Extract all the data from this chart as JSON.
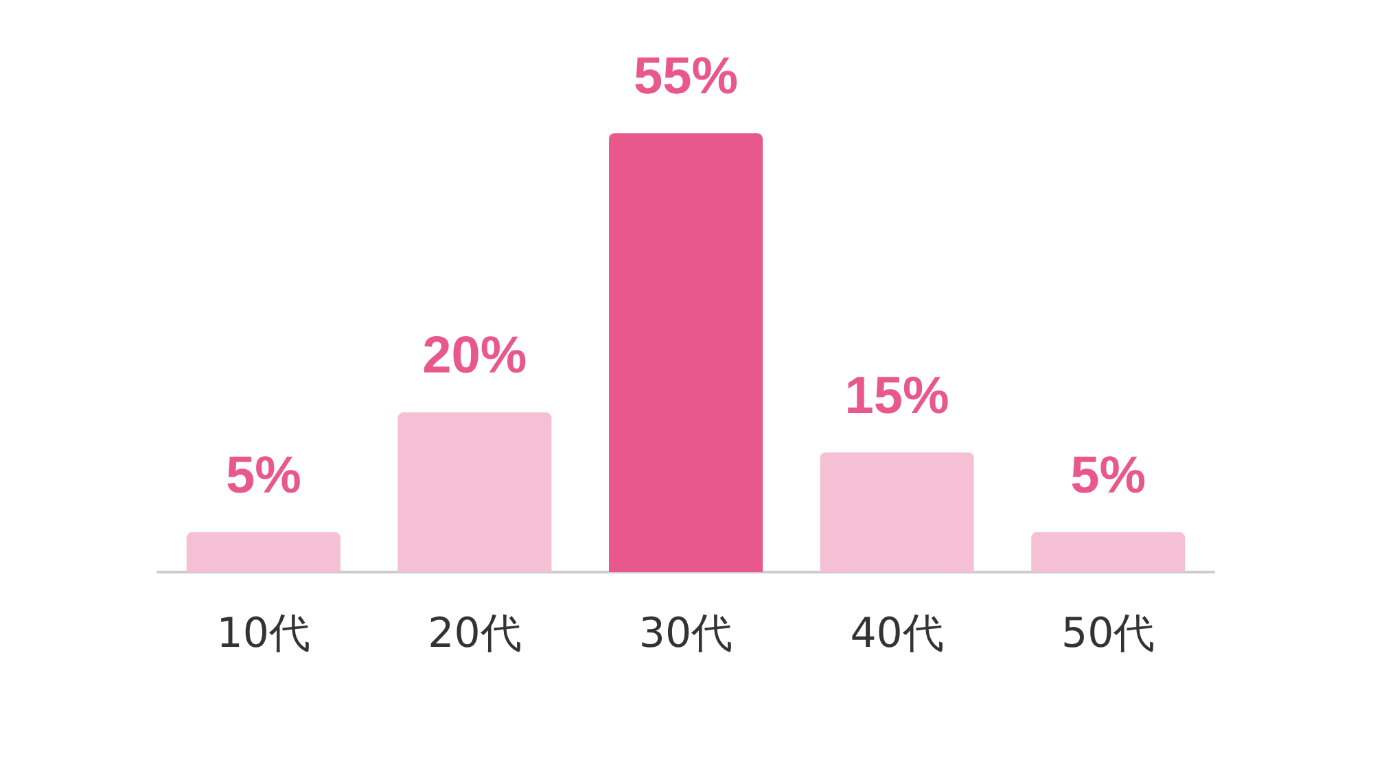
{
  "chart_data": {
    "type": "bar",
    "categories": [
      "10代",
      "20代",
      "30代",
      "40代",
      "50代"
    ],
    "values": [
      5,
      20,
      55,
      15,
      5
    ],
    "colors": [
      "#f5c0d3",
      "#f5c0d3",
      "#e8588a",
      "#f5c0d3",
      "#f5c0d3"
    ],
    "value_labels": [
      "5%",
      "20%",
      "55%",
      "15%",
      "5%"
    ],
    "grid": false
  }
}
